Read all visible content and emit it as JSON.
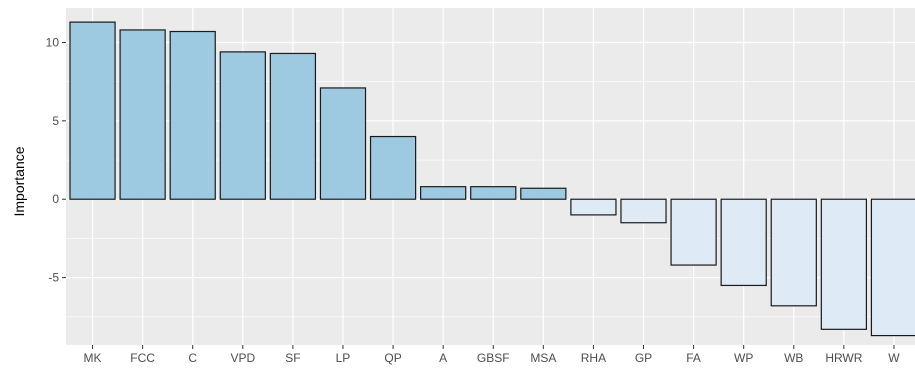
{
  "chart_data": {
    "type": "bar",
    "title": "",
    "xlabel": "",
    "ylabel": "Importance",
    "categories": [
      "MK",
      "FCC",
      "C",
      "VPD",
      "SF",
      "LP",
      "QP",
      "A",
      "GBSF",
      "MSA",
      "RHA",
      "GP",
      "FA",
      "WP",
      "WB",
      "HRWR",
      "W"
    ],
    "values": [
      11.3,
      10.8,
      10.7,
      9.4,
      9.3,
      7.1,
      4.0,
      0.8,
      0.8,
      0.7,
      -1.0,
      -1.5,
      -4.2,
      -5.5,
      -6.8,
      -8.3,
      -8.7
    ],
    "ylim": [
      -9.3,
      12.2
    ],
    "yticks": [
      -5,
      0,
      5,
      10
    ],
    "grid": true,
    "colors": {
      "positive_fill": "#9ecae1",
      "negative_fill": "#deebf7",
      "bar_outline": "#1a1a1a",
      "panel_background": "#ebebeb",
      "grid_major": "#ffffff"
    }
  }
}
